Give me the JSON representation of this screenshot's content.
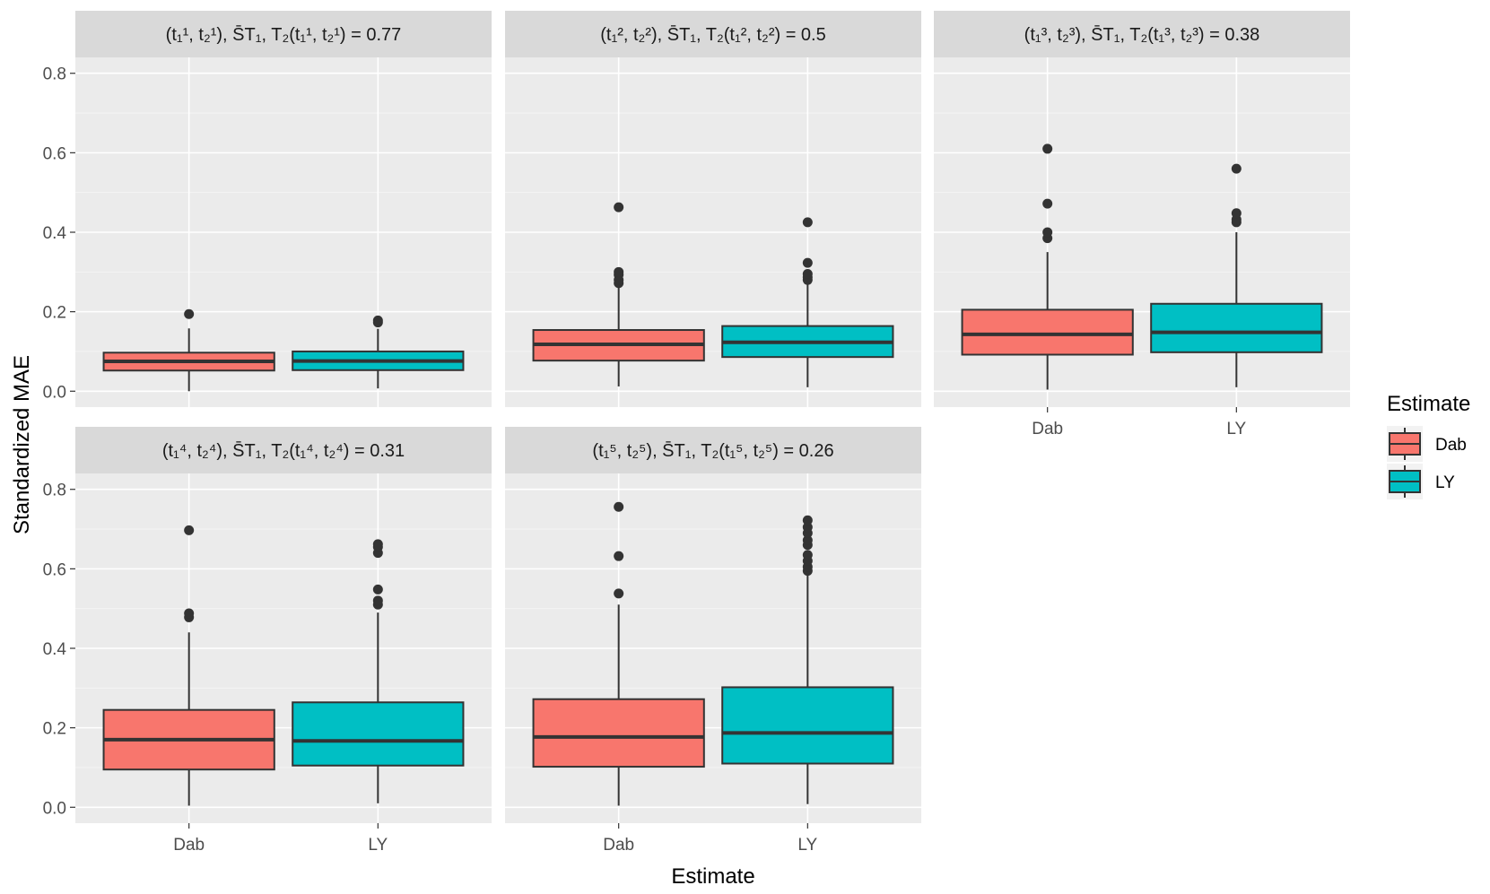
{
  "chart_data": {
    "type": "boxplot",
    "facet_titles": [
      "(t₁¹, t₂¹),   S̄T₁, T₂(t₁¹, t₂¹) = 0.77",
      "(t₁², t₂²),   S̄T₁, T₂(t₁², t₂²) = 0.5",
      "(t₁³, t₂³),   S̄T₁, T₂(t₁³, t₂³) = 0.38",
      "(t₁⁴, t₂⁴),   S̄T₁, T₂(t₁⁴, t₂⁴) = 0.31",
      "(t₁⁵, t₂⁵),   S̄T₁, T₂(t₁⁵, t₂⁵) = 0.26"
    ],
    "xlabel": "Estimate",
    "ylabel": "Standardized MAE",
    "categories": [
      "Dab",
      "LY"
    ],
    "ylim": [
      -0.04,
      0.84
    ],
    "yticks": [
      0.0,
      0.2,
      0.4,
      0.6,
      0.8
    ],
    "ytick_labels": [
      "0.0",
      "0.2",
      "0.4",
      "0.6",
      "0.8"
    ],
    "legend": {
      "title": "Estimate",
      "entries": [
        {
          "label": "Dab",
          "color": "#F8766D"
        },
        {
          "label": "LY",
          "color": "#00BFC4"
        }
      ],
      "position": "right"
    },
    "panels": [
      {
        "boxes": [
          {
            "name": "Dab",
            "lower_whisker": 0.0,
            "q1": 0.052,
            "median": 0.075,
            "q3": 0.097,
            "upper_whisker": 0.158,
            "outliers": [
              0.194
            ]
          },
          {
            "name": "LY",
            "lower_whisker": 0.007,
            "q1": 0.053,
            "median": 0.076,
            "q3": 0.1,
            "upper_whisker": 0.157,
            "outliers": [
              0.173,
              0.178
            ]
          }
        ]
      },
      {
        "boxes": [
          {
            "name": "Dab",
            "lower_whisker": 0.012,
            "q1": 0.077,
            "median": 0.118,
            "q3": 0.154,
            "upper_whisker": 0.265,
            "outliers": [
              0.272,
              0.28,
              0.293,
              0.3,
              0.463
            ]
          },
          {
            "name": "LY",
            "lower_whisker": 0.01,
            "q1": 0.086,
            "median": 0.123,
            "q3": 0.164,
            "upper_whisker": 0.27,
            "outliers": [
              0.28,
              0.287,
              0.295,
              0.323,
              0.425
            ]
          }
        ]
      },
      {
        "boxes": [
          {
            "name": "Dab",
            "lower_whisker": 0.004,
            "q1": 0.092,
            "median": 0.143,
            "q3": 0.205,
            "upper_whisker": 0.35,
            "outliers": [
              0.385,
              0.4,
              0.472,
              0.61
            ]
          },
          {
            "name": "LY",
            "lower_whisker": 0.01,
            "q1": 0.098,
            "median": 0.148,
            "q3": 0.22,
            "upper_whisker": 0.4,
            "outliers": [
              0.425,
              0.432,
              0.448,
              0.56
            ]
          }
        ]
      },
      {
        "boxes": [
          {
            "name": "Dab",
            "lower_whisker": 0.004,
            "q1": 0.095,
            "median": 0.17,
            "q3": 0.245,
            "upper_whisker": 0.44,
            "outliers": [
              0.478,
              0.488,
              0.697
            ]
          },
          {
            "name": "LY",
            "lower_whisker": 0.01,
            "q1": 0.105,
            "median": 0.167,
            "q3": 0.264,
            "upper_whisker": 0.49,
            "outliers": [
              0.51,
              0.52,
              0.548,
              0.64,
              0.655,
              0.662
            ]
          }
        ]
      },
      {
        "boxes": [
          {
            "name": "Dab",
            "lower_whisker": 0.004,
            "q1": 0.102,
            "median": 0.177,
            "q3": 0.272,
            "upper_whisker": 0.51,
            "outliers": [
              0.538,
              0.632,
              0.756
            ]
          },
          {
            "name": "LY",
            "lower_whisker": 0.008,
            "q1": 0.11,
            "median": 0.187,
            "q3": 0.302,
            "upper_whisker": 0.59,
            "outliers": [
              0.595,
              0.605,
              0.62,
              0.635,
              0.66,
              0.672,
              0.69,
              0.705,
              0.722
            ]
          }
        ]
      }
    ]
  }
}
